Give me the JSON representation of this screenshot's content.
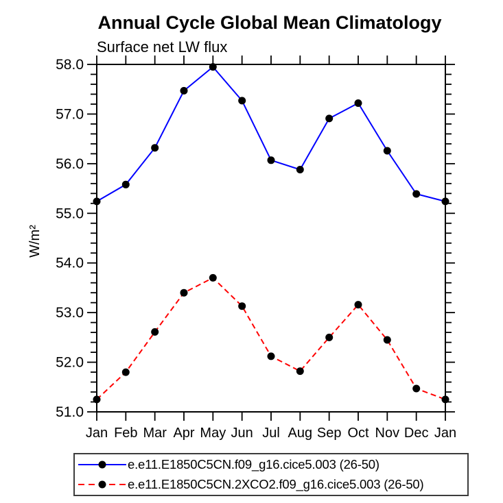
{
  "chart_data": {
    "type": "line",
    "title": "Annual Cycle Global Mean Climatology",
    "subtitle": "Surface net LW flux",
    "ylabel": "W/m²",
    "x_tick_labels": [
      "Jan",
      "Feb",
      "Mar",
      "Apr",
      "May",
      "Jun",
      "Jul",
      "Aug",
      "Sep",
      "Oct",
      "Nov",
      "Dec",
      "Jan"
    ],
    "ylim": [
      51.0,
      58.0
    ],
    "y_major_step": 1.0,
    "y_minor_step": 0.2,
    "grid": false,
    "legend_position": "bottom",
    "series": [
      {
        "name": "e.e11.E1850C5CN.f09_g16.cice5.003 (26-50)",
        "color": "#0000ff",
        "line_style": "solid",
        "marker": "filled-circle",
        "marker_color": "#000000",
        "values": [
          55.24,
          55.58,
          56.32,
          57.47,
          57.95,
          57.27,
          56.07,
          55.88,
          56.91,
          57.22,
          56.26,
          55.39,
          55.24
        ]
      },
      {
        "name": "e.e11.E1850C5CN.2XCO2.f09_g16.cice5.003 (26-50)",
        "color": "#ff0000",
        "line_style": "dashed",
        "marker": "filled-circle",
        "marker_color": "#000000",
        "values": [
          51.25,
          51.8,
          52.61,
          53.4,
          53.7,
          53.13,
          52.12,
          51.82,
          52.5,
          53.16,
          52.45,
          51.47,
          51.25
        ]
      }
    ]
  }
}
